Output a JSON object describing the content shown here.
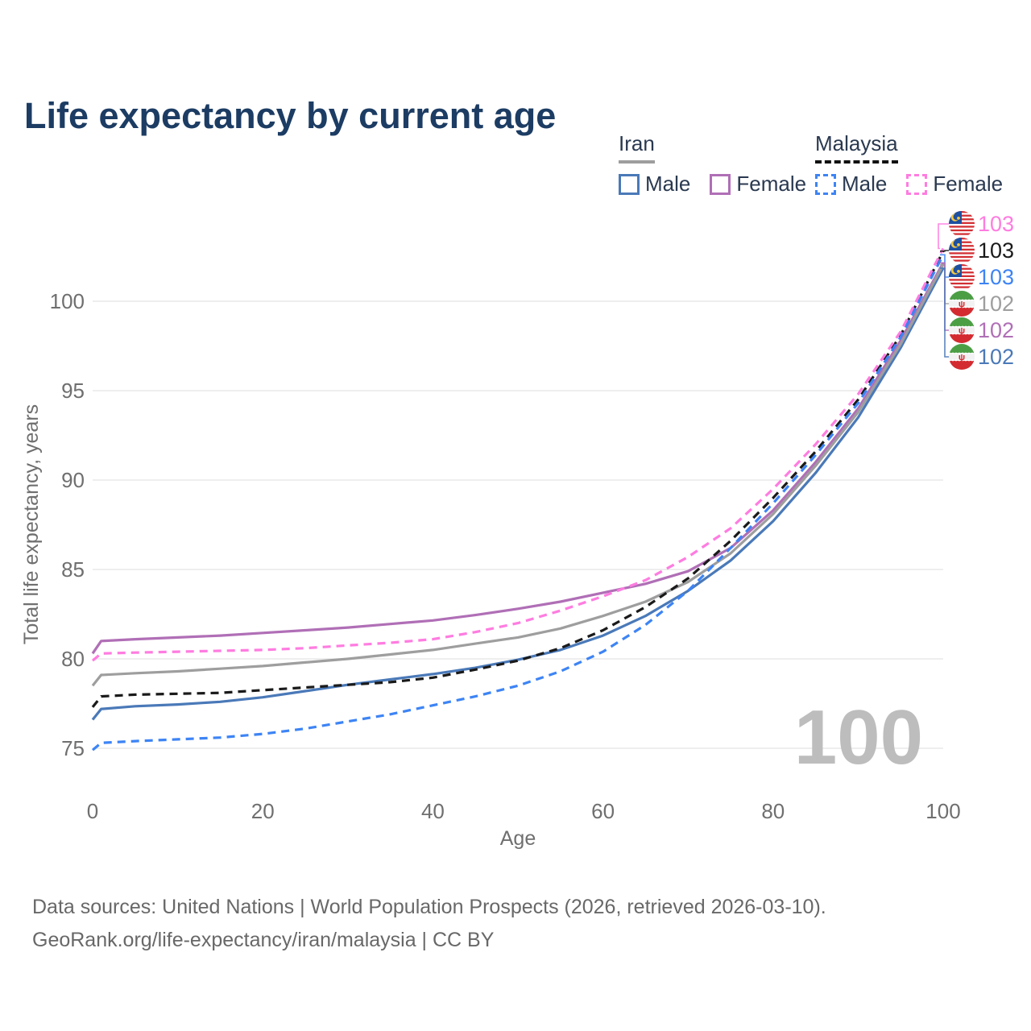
{
  "title": "Life expectancy by current age",
  "watermark": "100",
  "legend": {
    "iran": {
      "title": "Iran",
      "male": "Male",
      "female": "Female"
    },
    "malaysia": {
      "title": "Malaysia",
      "male": "Male",
      "female": "Female"
    }
  },
  "footer": {
    "line1": "Data sources: United Nations | World Population Prospects (2026, retrieved 2026-03-10).",
    "line2": "GeoRank.org/life-expectancy/iran/malaysia | CC BY"
  },
  "colors": {
    "title": "#1c3c63",
    "axis_text": "#6f6f6f",
    "grid": "#e8e8e8",
    "watermark": "#bdbdbd",
    "footer_text": "#686868",
    "iran_male": "#4a79b8",
    "iran_female": "#b06fb6",
    "iran_both": "#9e9e9e",
    "malaysia_both": "#1a1a1a",
    "malaysia_male": "#3d84f5",
    "malaysia_female": "#ff7ce0"
  },
  "chart_data": {
    "type": "line",
    "title": "Life expectancy by current age",
    "xlabel": "Age",
    "ylabel": "Total life expectancy, years",
    "xlim": [
      0,
      100
    ],
    "ylim": [
      74.5,
      103.5
    ],
    "xticks": [
      0,
      20,
      40,
      60,
      80,
      100
    ],
    "yticks": [
      75,
      80,
      85,
      90,
      95,
      100
    ],
    "grid": "horizontal",
    "legend_position": "top-right",
    "x": [
      0,
      1,
      5,
      10,
      15,
      20,
      25,
      30,
      35,
      40,
      45,
      50,
      55,
      60,
      65,
      70,
      75,
      80,
      85,
      90,
      95,
      100
    ],
    "series": [
      {
        "name": "Iran Male",
        "country": "Iran",
        "sex": "Male",
        "style": "solid",
        "color": "#4a79b8",
        "values": [
          76.6,
          77.2,
          77.35,
          77.45,
          77.6,
          77.85,
          78.2,
          78.55,
          78.85,
          79.15,
          79.5,
          79.95,
          80.5,
          81.3,
          82.4,
          83.8,
          85.5,
          87.7,
          90.4,
          93.5,
          97.4,
          101.85
        ]
      },
      {
        "name": "Iran Female",
        "country": "Iran",
        "sex": "Female",
        "style": "solid",
        "color": "#b06fb6",
        "values": [
          80.3,
          81.0,
          81.1,
          81.2,
          81.3,
          81.45,
          81.6,
          81.75,
          81.95,
          82.15,
          82.45,
          82.8,
          83.2,
          83.7,
          84.2,
          84.9,
          86.2,
          88.3,
          91.0,
          94.0,
          97.8,
          102.15
        ]
      },
      {
        "name": "Iran Both sexes",
        "country": "Iran",
        "sex": "Both",
        "style": "solid",
        "color": "#9e9e9e",
        "values": [
          78.5,
          79.1,
          79.2,
          79.3,
          79.45,
          79.6,
          79.8,
          80.0,
          80.25,
          80.5,
          80.85,
          81.2,
          81.7,
          82.4,
          83.2,
          84.3,
          85.9,
          88.1,
          90.8,
          93.8,
          97.6,
          102.05
        ]
      },
      {
        "name": "Malaysia Both sexes",
        "country": "Malaysia",
        "sex": "Both",
        "style": "dashed",
        "color": "#1a1a1a",
        "values": [
          77.3,
          77.9,
          78.0,
          78.05,
          78.1,
          78.25,
          78.4,
          78.55,
          78.7,
          78.95,
          79.4,
          79.9,
          80.6,
          81.6,
          82.9,
          84.5,
          86.6,
          89.0,
          91.6,
          94.5,
          98.1,
          102.8
        ]
      },
      {
        "name": "Malaysia Male",
        "country": "Malaysia",
        "sex": "Male",
        "style": "dashed",
        "color": "#3d84f5",
        "values": [
          74.9,
          75.3,
          75.4,
          75.5,
          75.6,
          75.8,
          76.1,
          76.5,
          76.9,
          77.4,
          77.9,
          78.5,
          79.3,
          80.4,
          81.9,
          83.8,
          86.2,
          88.7,
          91.4,
          94.3,
          98.0,
          102.6
        ]
      },
      {
        "name": "Malaysia Female",
        "country": "Malaysia",
        "sex": "Female",
        "style": "dashed",
        "color": "#ff7ce0",
        "values": [
          79.9,
          80.3,
          80.35,
          80.4,
          80.45,
          80.5,
          80.6,
          80.75,
          80.9,
          81.1,
          81.5,
          82.0,
          82.7,
          83.5,
          84.4,
          85.7,
          87.3,
          89.5,
          92.0,
          94.8,
          98.3,
          102.95
        ]
      }
    ],
    "right_labels": [
      {
        "flag": "malaysia",
        "series": "Malaysia Female",
        "value": "103"
      },
      {
        "flag": "malaysia",
        "series": "Malaysia Both sexes",
        "value": "103"
      },
      {
        "flag": "malaysia",
        "series": "Malaysia Male",
        "value": "103"
      },
      {
        "flag": "iran",
        "series": "Iran Both sexes",
        "value": "102"
      },
      {
        "flag": "iran",
        "series": "Iran Female",
        "value": "102"
      },
      {
        "flag": "iran",
        "series": "Iran Male",
        "value": "102"
      }
    ]
  }
}
